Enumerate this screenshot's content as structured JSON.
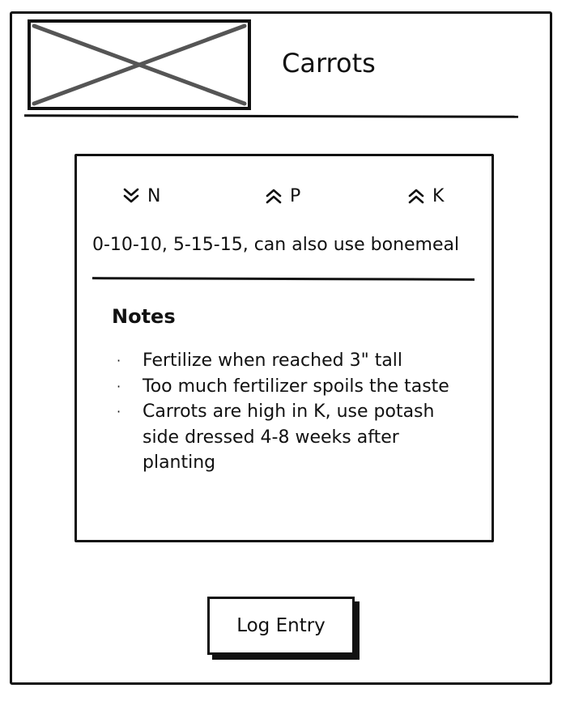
{
  "header": {
    "image_placeholder_icon": "image-placeholder-cross-icon",
    "title": "Carrots"
  },
  "nutrients": [
    {
      "label": "N",
      "icon": "double-chevron-down-icon",
      "trend": "low"
    },
    {
      "label": "P",
      "icon": "double-chevron-up-icon",
      "trend": "high"
    },
    {
      "label": "K",
      "icon": "double-chevron-up-icon",
      "trend": "high"
    }
  ],
  "fertilizer_info": "0-10-10, 5-15-15, can also use bonemeal",
  "notes": {
    "heading": "Notes",
    "items": [
      "Fertilize when reached 3\" tall",
      "Too much fertilizer spoils the taste",
      "Carrots are high in K, use potash side dressed 4-8 weeks after planting"
    ],
    "bullet_symbol": "·"
  },
  "actions": {
    "log_entry_label": "Log Entry"
  },
  "colors": {
    "ink": "#111111",
    "placeholder_cross": "#555555",
    "background": "#ffffff"
  }
}
